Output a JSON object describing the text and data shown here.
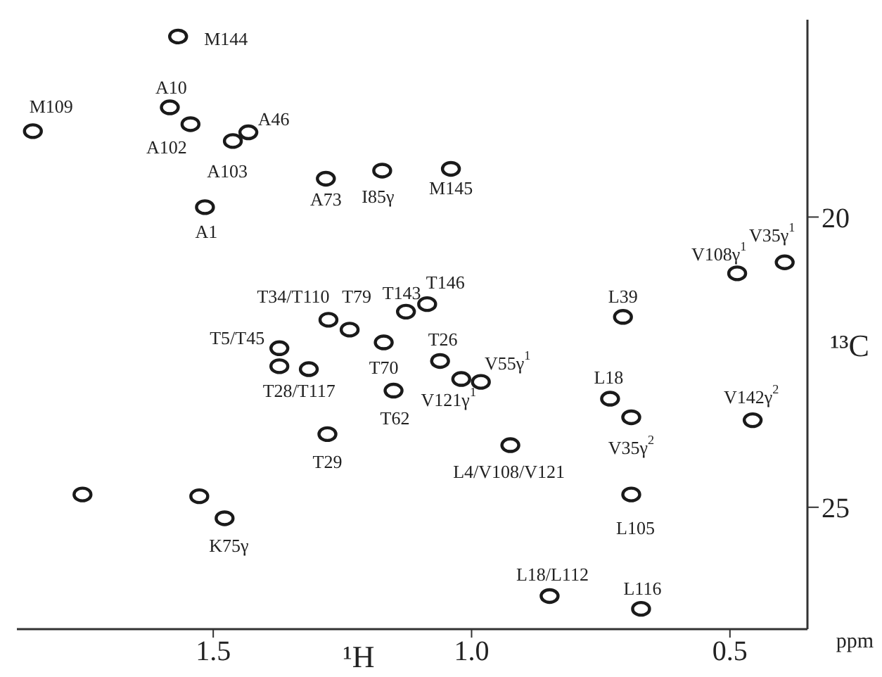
{
  "chart_data": {
    "type": "scatter",
    "xlabel": "¹H",
    "ylabel": "¹³C",
    "xlim": [
      1.88,
      0.35
    ],
    "ylim": [
      27.1,
      16.6
    ],
    "xticks": [
      1.5,
      {
        "value": 1,
        "label": "1.0"
      },
      0.5
    ],
    "yticks": [
      20,
      25
    ],
    "marker": "circle",
    "series": [
      {
        "color": "#1a1a1a",
        "x": [
          1.568,
          1.849,
          1.584,
          1.544,
          1.462,
          1.432,
          1.282,
          1.173,
          1.04,
          1.516,
          0.486,
          0.394,
          1.127,
          1.086,
          1.277,
          1.236,
          1.372,
          1.372,
          1.315,
          0.707,
          1.17,
          1.061,
          0.982,
          1.02,
          1.151,
          0.732,
          0.691,
          0.456,
          1.279,
          0.925,
          0.691,
          1.478,
          1.527,
          1.753,
          0.849,
          0.672
        ],
        "values": [
          16.89,
          18.52,
          18.11,
          18.4,
          18.69,
          18.54,
          19.34,
          19.2,
          19.17,
          19.83,
          20.97,
          20.78,
          21.63,
          21.5,
          21.77,
          21.94,
          22.26,
          22.57,
          22.62,
          21.72,
          22.16,
          22.48,
          22.84,
          22.79,
          22.99,
          23.13,
          23.45,
          23.5,
          23.74,
          23.93,
          24.78,
          25.19,
          24.81,
          24.78,
          26.53,
          26.75
        ]
      }
    ],
    "annotations": [
      {
        "text": "M144",
        "x": 1.568,
        "y": 16.89
      },
      {
        "text": "M109",
        "x": 1.849,
        "y": 18.52
      },
      {
        "text": "A10",
        "x": 1.584,
        "y": 18.11
      },
      {
        "text": "A102",
        "x": 1.544,
        "y": 18.4
      },
      {
        "text": "A46",
        "x": 1.432,
        "y": 18.54
      },
      {
        "text": "A103",
        "x": 1.462,
        "y": 18.69
      },
      {
        "text": "A73",
        "x": 1.282,
        "y": 19.34
      },
      {
        "text": "I85γ",
        "x": 1.173,
        "y": 19.2
      },
      {
        "text": "M145",
        "x": 1.04,
        "y": 19.17
      },
      {
        "text": "A1",
        "x": 1.516,
        "y": 19.83
      },
      {
        "text": "V108γ$^{1}$",
        "x": 0.486,
        "y": 20.97
      },
      {
        "text": "V35γ$^{1}$",
        "x": 0.394,
        "y": 20.78
      },
      {
        "text": "T34/T110",
        "x": 1.277,
        "y": 21.77
      },
      {
        "text": "T79",
        "x": 1.236,
        "y": 21.94
      },
      {
        "text": "T143",
        "x": 1.127,
        "y": 21.63
      },
      {
        "text": "T146",
        "x": 1.086,
        "y": 21.5
      },
      {
        "text": "T5/T45",
        "x": 1.372,
        "y": 22.26
      },
      {
        "text": "T28/T117",
        "x": 1.372,
        "y": 22.57
      },
      {
        "text": "L39",
        "x": 0.707,
        "y": 21.72
      },
      {
        "text": "T70",
        "x": 1.17,
        "y": 22.16
      },
      {
        "text": "T26",
        "x": 1.061,
        "y": 22.48
      },
      {
        "text": "V55γ$^{1}$",
        "x": 0.982,
        "y": 22.84
      },
      {
        "text": "V121γ$^{1}$",
        "x": 1.02,
        "y": 22.79
      },
      {
        "text": "T62",
        "x": 1.151,
        "y": 22.99
      },
      {
        "text": "L18",
        "x": 0.732,
        "y": 23.13
      },
      {
        "text": "V35γ$^{2}$",
        "x": 0.691,
        "y": 23.45
      },
      {
        "text": "V142γ$^{2}$",
        "x": 0.456,
        "y": 23.5
      },
      {
        "text": "T29",
        "x": 1.279,
        "y": 23.74
      },
      {
        "text": "L4/V108/V121",
        "x": 0.925,
        "y": 23.93
      },
      {
        "text": "L105",
        "x": 0.691,
        "y": 24.78
      },
      {
        "text": "K75γ",
        "x": 1.478,
        "y": 25.19
      },
      {
        "text": "L18/L112",
        "x": 0.849,
        "y": 26.53
      },
      {
        "text": "L116",
        "x": 0.672,
        "y": 26.75
      },
      "ppm"
    ]
  }
}
